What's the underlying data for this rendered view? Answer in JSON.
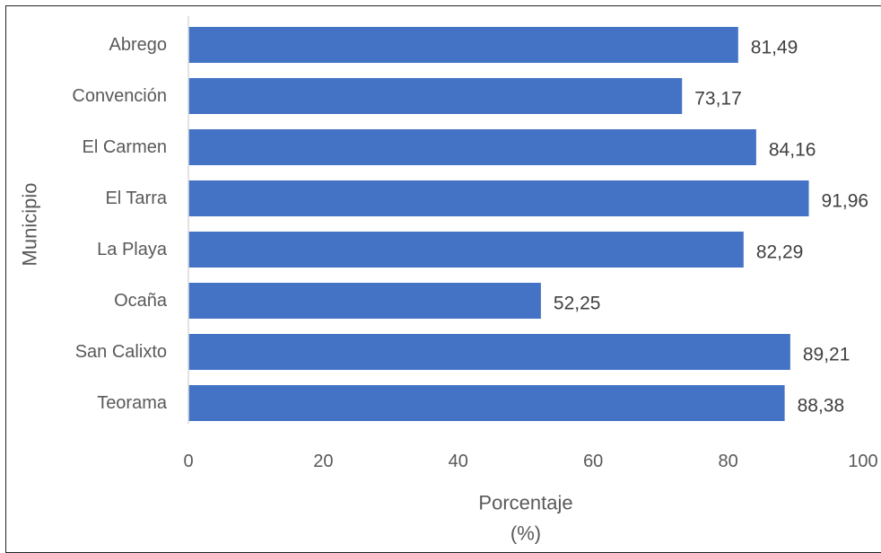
{
  "chart_data": {
    "type": "bar",
    "orientation": "horizontal",
    "categories": [
      "Abrego",
      "Convención",
      "El Carmen",
      "El Tarra",
      "La Playa",
      "Ocaña",
      "San Calixto",
      "Teorama"
    ],
    "values": [
      81.49,
      73.17,
      84.16,
      91.96,
      82.29,
      52.25,
      89.21,
      88.38
    ],
    "data_labels": [
      "81,49",
      "73,17",
      "84,16",
      "91,96",
      "82,29",
      "52,25",
      "89,21",
      "88,38"
    ],
    "xlabel_lines": [
      "Porcentaje",
      "(%)"
    ],
    "ylabel": "Municipio",
    "xlim": [
      0,
      100
    ],
    "xticks": [
      0,
      20,
      40,
      60,
      80,
      100
    ],
    "xtick_labels": [
      "0",
      "20",
      "40",
      "60",
      "80",
      "100"
    ],
    "grid": false,
    "legend": "none",
    "colors": {
      "bar": "#4472C4",
      "text": "#595959",
      "axis": "#D9D9D9",
      "border": "#222222"
    }
  }
}
